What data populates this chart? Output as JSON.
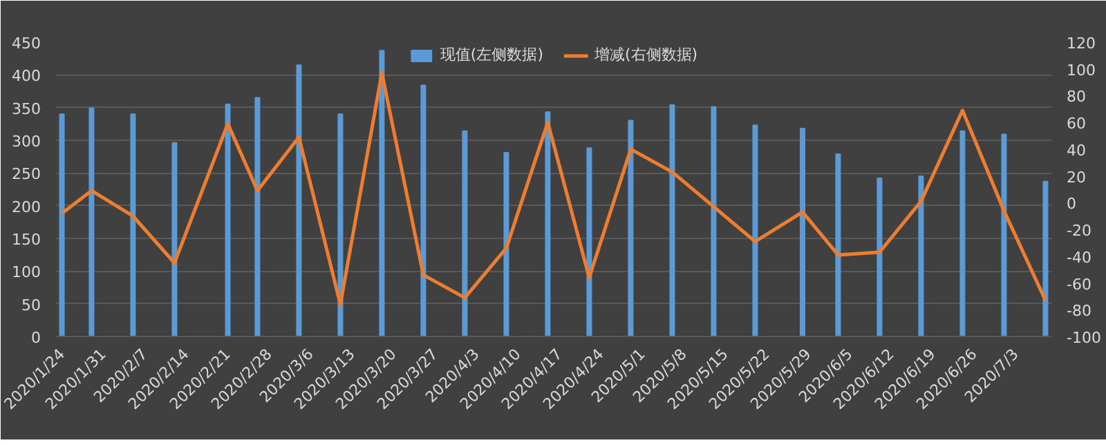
{
  "chart_data": {
    "type": "bar",
    "x": [
      "2020-01-24",
      "2020-01-29",
      "2020-02-05",
      "2020-02-12",
      "2020-02-21",
      "2020-02-26",
      "2020-03-04",
      "2020-03-11",
      "2020-03-18",
      "2020-03-25",
      "2020-04-01",
      "2020-04-08",
      "2020-04-15",
      "2020-04-22",
      "2020-04-29",
      "2020-05-06",
      "2020-05-13",
      "2020-05-20",
      "2020-05-28",
      "2020-06-03",
      "2020-06-10",
      "2020-06-17",
      "2020-06-24",
      "2020-07-01",
      "2020-07-08"
    ],
    "series": [
      {
        "name": "现值(左侧数据)",
        "color": "#5b9bd5",
        "values": [
          340,
          349,
          340,
          296,
          355,
          365,
          415,
          340,
          437,
          384,
          314,
          281,
          343,
          288,
          330,
          354,
          351,
          323,
          318,
          279,
          242,
          245,
          314,
          309,
          237
        ]
      },
      {
        "name": "增减(右侧数据)",
        "type": "line",
        "axis": "y2",
        "color": "#ed7d31",
        "values": [
          -8,
          9,
          -10,
          -45,
          59,
          9,
          49,
          -76,
          97,
          -54,
          -71,
          -34,
          60,
          -56,
          40,
          23,
          -3,
          -29,
          -7,
          -39,
          -37,
          1,
          69,
          -6,
          -73
        ]
      }
    ],
    "xlim": [
      "2020-01-23",
      "2020-07-09"
    ],
    "xticks": [
      {
        "value": "2020-01-24",
        "label": "2020/1/24"
      },
      {
        "value": "2020-01-31",
        "label": "2020/1/31"
      },
      {
        "value": "2020-02-07",
        "label": "2020/2/7"
      },
      {
        "value": "2020-02-14",
        "label": "2020/2/14"
      },
      {
        "value": "2020-02-21",
        "label": "2020/2/21"
      },
      {
        "value": "2020-02-28",
        "label": "2020/2/28"
      },
      {
        "value": "2020-03-06",
        "label": "2020/3/6"
      },
      {
        "value": "2020-03-13",
        "label": "2020/3/13"
      },
      {
        "value": "2020-03-20",
        "label": "2020/3/20"
      },
      {
        "value": "2020-03-27",
        "label": "2020/3/27"
      },
      {
        "value": "2020-04-03",
        "label": "2020/4/3"
      },
      {
        "value": "2020-04-10",
        "label": "2020/4/10"
      },
      {
        "value": "2020-04-17",
        "label": "2020/4/17"
      },
      {
        "value": "2020-04-24",
        "label": "2020/4/24"
      },
      {
        "value": "2020-05-01",
        "label": "2020/5/1"
      },
      {
        "value": "2020-05-08",
        "label": "2020/5/8"
      },
      {
        "value": "2020-05-15",
        "label": "2020/5/15"
      },
      {
        "value": "2020-05-22",
        "label": "2020/5/22"
      },
      {
        "value": "2020-05-29",
        "label": "2020/5/29"
      },
      {
        "value": "2020-06-05",
        "label": "2020/6/5"
      },
      {
        "value": "2020-06-12",
        "label": "2020/6/12"
      },
      {
        "value": "2020-06-19",
        "label": "2020/6/19"
      },
      {
        "value": "2020-06-26",
        "label": "2020/6/26"
      },
      {
        "value": "2020-07-03",
        "label": "2020/7/3"
      }
    ],
    "ylim": [
      0,
      450
    ],
    "yticks": [
      0,
      50,
      100,
      150,
      200,
      250,
      300,
      350,
      400,
      450
    ],
    "y2lim": [
      -100,
      120
    ],
    "y2ticks": [
      -100,
      -80,
      -60,
      -40,
      -20,
      0,
      20,
      40,
      60,
      80,
      100,
      120
    ],
    "grid": "y",
    "legend": "top",
    "marker": "none",
    "line_style": "solid"
  }
}
